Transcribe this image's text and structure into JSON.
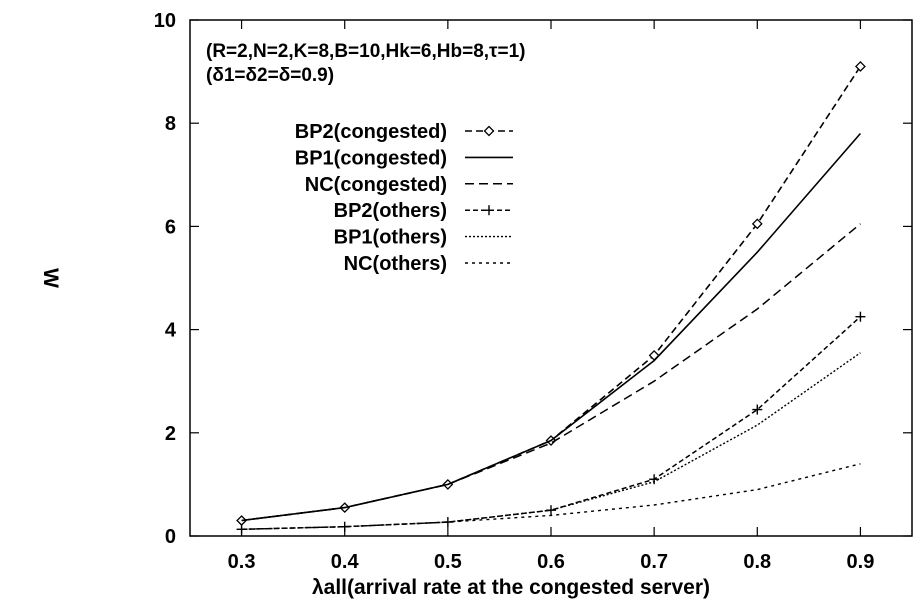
{
  "chart_data": {
    "type": "line",
    "title": "",
    "annotations": [
      "(R=2,N=2,K=8,B=10,Hk=6,Hb=8,τ=1)",
      "(δ1=δ2=δ=0.9)"
    ],
    "xlabel": "λall(arrival rate at the congested server)",
    "ylabel": "W",
    "xlim": [
      0.25,
      0.95
    ],
    "ylim": [
      0,
      10
    ],
    "x_ticks": [
      "0.3",
      "0.4",
      "0.5",
      "0.6",
      "0.7",
      "0.8",
      "0.9"
    ],
    "y_ticks": [
      "0",
      "2",
      "4",
      "6",
      "8",
      "10"
    ],
    "grid": false,
    "legend_position": "top-left",
    "x": [
      0.3,
      0.4,
      0.5,
      0.6,
      0.7,
      0.8,
      0.9
    ],
    "series": [
      {
        "name": "BP2(congested)",
        "values": [
          0.3,
          0.55,
          1.0,
          1.85,
          3.5,
          6.05,
          9.1
        ],
        "line_style": "dashed",
        "marker": "diamond"
      },
      {
        "name": "BP1(congested)",
        "values": [
          0.3,
          0.55,
          1.0,
          1.85,
          3.4,
          5.5,
          7.8
        ],
        "line_style": "solid",
        "marker": "none"
      },
      {
        "name": "NC(congested)",
        "values": [
          0.3,
          0.55,
          1.0,
          1.8,
          3.0,
          4.4,
          6.05
        ],
        "line_style": "long-dash",
        "marker": "none"
      },
      {
        "name": "BP2(others)",
        "values": [
          0.13,
          0.18,
          0.27,
          0.5,
          1.1,
          2.45,
          4.25
        ],
        "line_style": "short-dash",
        "marker": "plus"
      },
      {
        "name": "BP1(others)",
        "values": [
          0.13,
          0.18,
          0.27,
          0.5,
          1.05,
          2.15,
          3.55
        ],
        "line_style": "dotted",
        "marker": "none"
      },
      {
        "name": "NC(others)",
        "values": [
          0.13,
          0.18,
          0.27,
          0.4,
          0.6,
          0.9,
          1.4
        ],
        "line_style": "sparse-dotted",
        "marker": "none"
      }
    ]
  }
}
